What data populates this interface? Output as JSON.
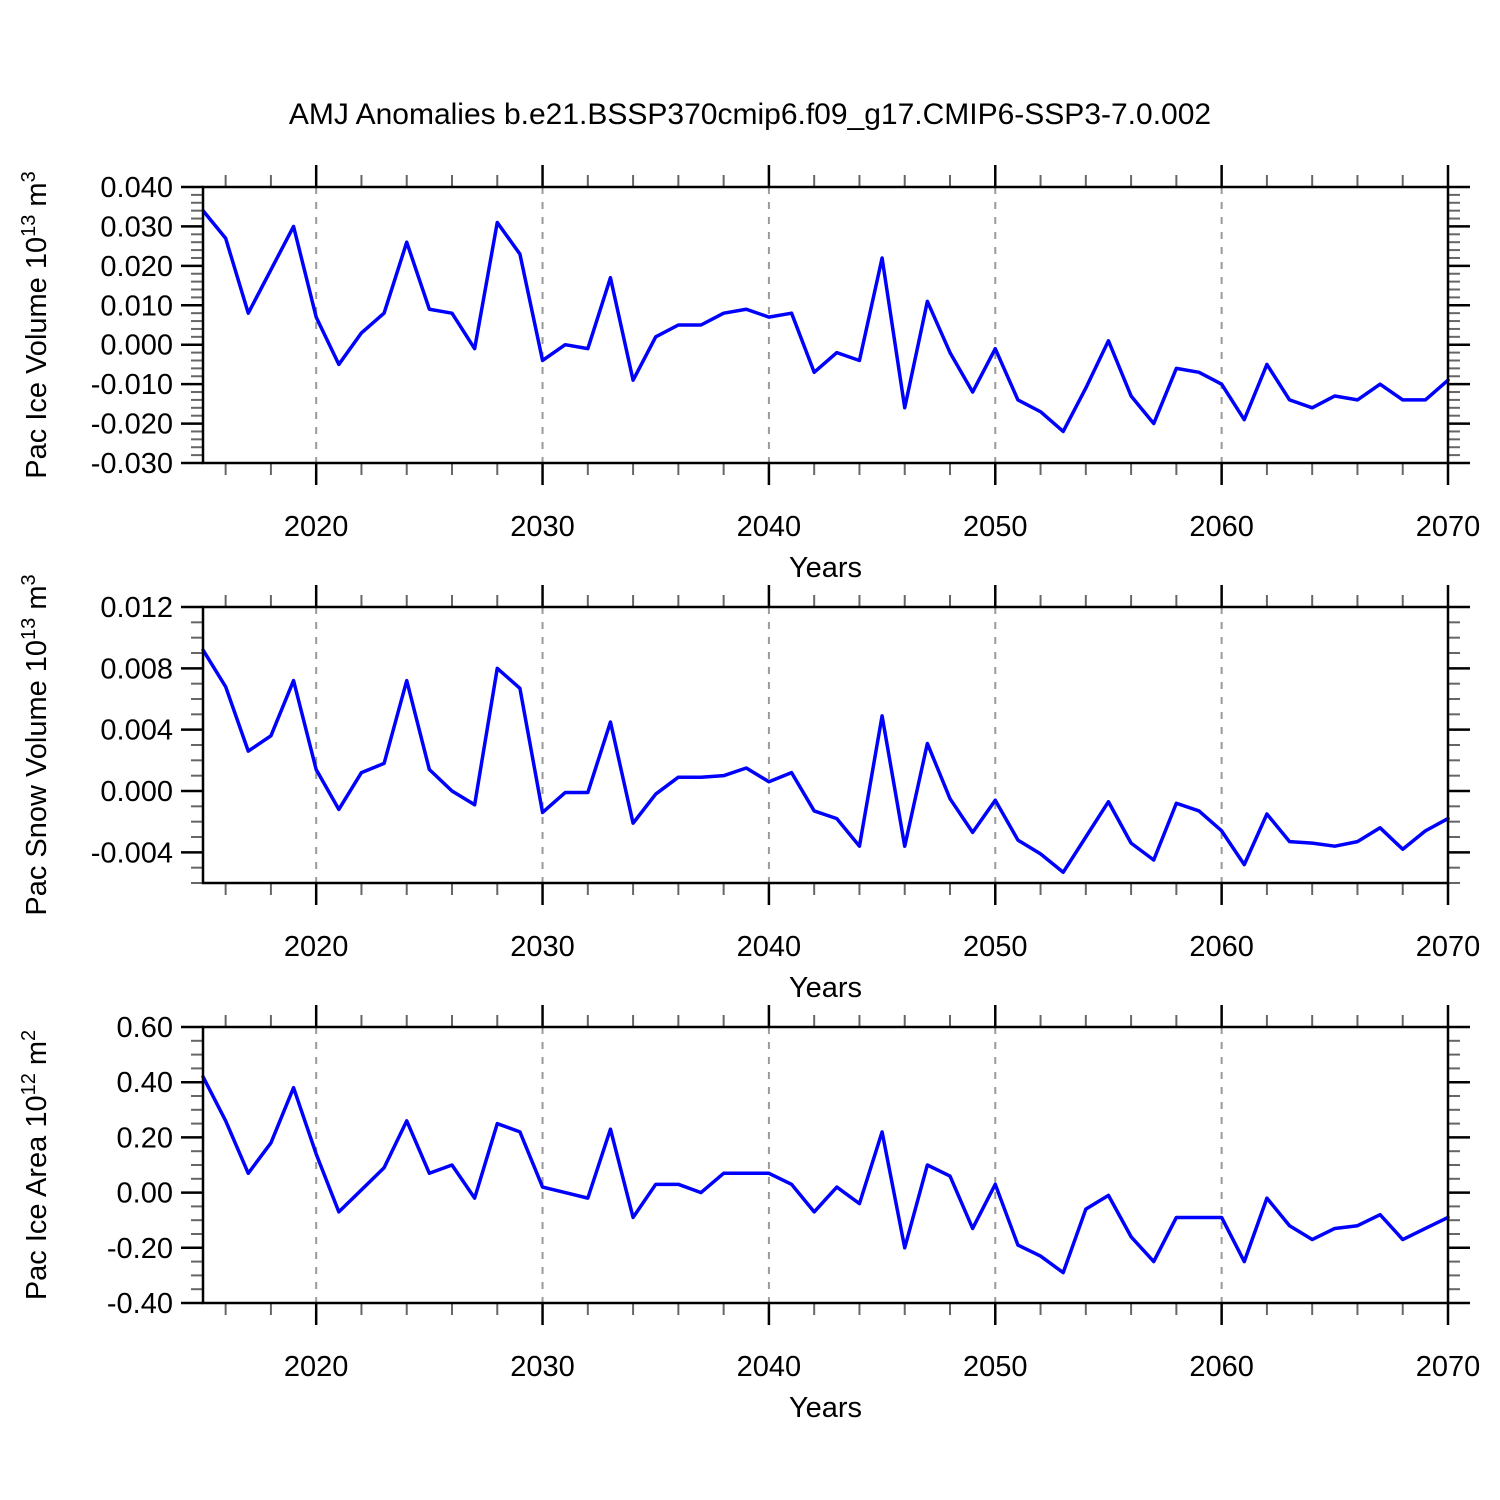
{
  "title": "AMJ Anomalies b.e21.BSSP370cmip6.f09_g17.CMIP6-SSP3-7.0.002",
  "line_color": "#0000ff",
  "gridline_color": "#9a9a9a",
  "axis_color": "#000000",
  "years": [
    2015,
    2016,
    2017,
    2018,
    2019,
    2020,
    2021,
    2022,
    2023,
    2024,
    2025,
    2026,
    2027,
    2028,
    2029,
    2030,
    2031,
    2032,
    2033,
    2034,
    2035,
    2036,
    2037,
    2038,
    2039,
    2040,
    2041,
    2042,
    2043,
    2044,
    2045,
    2046,
    2047,
    2048,
    2049,
    2050,
    2051,
    2052,
    2053,
    2054,
    2055,
    2056,
    2057,
    2058,
    2059,
    2060,
    2061,
    2062,
    2063,
    2064,
    2065,
    2066,
    2067,
    2068,
    2069,
    2070
  ],
  "axes": {
    "xlabel": "Years",
    "xlim": [
      2015,
      2070
    ],
    "xticks_major": [
      2020,
      2030,
      2040,
      2050,
      2060,
      2070
    ],
    "xtick_minor_step": 2,
    "decade_gridlines": [
      2020,
      2030,
      2040,
      2050,
      2060
    ]
  },
  "chart_data": [
    {
      "type": "line",
      "name": "ice-volume",
      "ylabel": "Pac Ice Volume 10^13 m^3",
      "ylabel_parts": [
        {
          "t": "Pac Ice Volume 10",
          "sup": false
        },
        {
          "t": "13",
          "sup": true
        },
        {
          "t": " m",
          "sup": false
        },
        {
          "t": "3",
          "sup": true
        }
      ],
      "xlabel": "Years",
      "ylim": [
        -0.03,
        0.04
      ],
      "ytick_labels": [
        "0.040",
        "0.030",
        "0.020",
        "0.010",
        "0.000",
        "-0.010",
        "-0.020",
        "-0.030"
      ],
      "ytick_values": [
        0.04,
        0.03,
        0.02,
        0.01,
        0.0,
        -0.01,
        -0.02,
        -0.03
      ],
      "ytick_minor_step": 0.002,
      "values": [
        0.034,
        0.027,
        0.008,
        0.019,
        0.03,
        0.007,
        -0.005,
        0.003,
        0.008,
        0.026,
        0.009,
        0.008,
        -0.001,
        0.031,
        0.023,
        -0.004,
        0.0,
        -0.001,
        0.017,
        -0.009,
        0.002,
        0.005,
        0.005,
        0.008,
        0.009,
        0.007,
        0.008,
        -0.007,
        -0.002,
        -0.004,
        0.022,
        -0.016,
        0.011,
        -0.002,
        -0.012,
        -0.001,
        -0.014,
        -0.017,
        -0.022,
        -0.011,
        0.001,
        -0.013,
        -0.02,
        -0.006,
        -0.007,
        -0.01,
        -0.019,
        -0.005,
        -0.014,
        -0.016,
        -0.013,
        -0.014,
        -0.01,
        -0.014,
        -0.014,
        -0.009
      ]
    },
    {
      "type": "line",
      "name": "snow-volume",
      "ylabel": "Pac Snow Volume 10^13 m^3",
      "ylabel_parts": [
        {
          "t": "Pac Snow Volume 10",
          "sup": false
        },
        {
          "t": "13",
          "sup": true
        },
        {
          "t": " m",
          "sup": false
        },
        {
          "t": "3",
          "sup": true
        }
      ],
      "xlabel": "Years",
      "ylim": [
        -0.006,
        0.012
      ],
      "ytick_labels": [
        "0.012",
        "0.008",
        "0.004",
        "0.000",
        "-0.004"
      ],
      "ytick_values": [
        0.012,
        0.008,
        0.004,
        0.0,
        -0.004
      ],
      "ytick_minor_step": 0.001,
      "values": [
        0.0092,
        0.0068,
        0.0026,
        0.0036,
        0.0072,
        0.0014,
        -0.0012,
        0.0012,
        0.0018,
        0.0072,
        0.0014,
        0.0,
        -0.0009,
        0.008,
        0.0067,
        -0.0014,
        -0.0001,
        -0.0001,
        0.0045,
        -0.0021,
        -0.0002,
        0.0009,
        0.0009,
        0.001,
        0.0015,
        0.0006,
        0.0012,
        -0.0013,
        -0.0018,
        -0.0036,
        0.0049,
        -0.0036,
        0.0031,
        -0.0005,
        -0.0027,
        -0.0006,
        -0.0032,
        -0.0041,
        -0.0053,
        -0.003,
        -0.0007,
        -0.0034,
        -0.0045,
        -0.0008,
        -0.0013,
        -0.0026,
        -0.0048,
        -0.0015,
        -0.0033,
        -0.0034,
        -0.0036,
        -0.0033,
        -0.0024,
        -0.0038,
        -0.0026,
        -0.0018
      ]
    },
    {
      "type": "line",
      "name": "ice-area",
      "ylabel": "Pac Ice Area 10^12 m^2",
      "ylabel_parts": [
        {
          "t": "Pac Ice Area 10",
          "sup": false
        },
        {
          "t": "12",
          "sup": true
        },
        {
          "t": " m",
          "sup": false
        },
        {
          "t": "2",
          "sup": true
        }
      ],
      "xlabel": "Years",
      "ylim": [
        -0.4,
        0.6
      ],
      "ytick_labels": [
        "0.60",
        "0.40",
        "0.20",
        "0.00",
        "-0.20",
        "-0.40"
      ],
      "ytick_values": [
        0.6,
        0.4,
        0.2,
        0.0,
        -0.2,
        -0.4
      ],
      "ytick_minor_step": 0.05,
      "values": [
        0.42,
        0.26,
        0.07,
        0.18,
        0.38,
        0.14,
        -0.07,
        0.01,
        0.09,
        0.26,
        0.07,
        0.1,
        -0.02,
        0.25,
        0.22,
        0.02,
        0.0,
        -0.02,
        0.23,
        -0.09,
        0.03,
        0.03,
        0.0,
        0.07,
        0.07,
        0.07,
        0.03,
        -0.07,
        0.02,
        -0.04,
        0.22,
        -0.2,
        0.1,
        0.06,
        -0.13,
        0.03,
        -0.19,
        -0.23,
        -0.29,
        -0.06,
        -0.01,
        -0.16,
        -0.25,
        -0.09,
        -0.09,
        -0.09,
        -0.25,
        -0.02,
        -0.12,
        -0.17,
        -0.13,
        -0.12,
        -0.08,
        -0.17,
        -0.13,
        -0.09
      ]
    }
  ]
}
